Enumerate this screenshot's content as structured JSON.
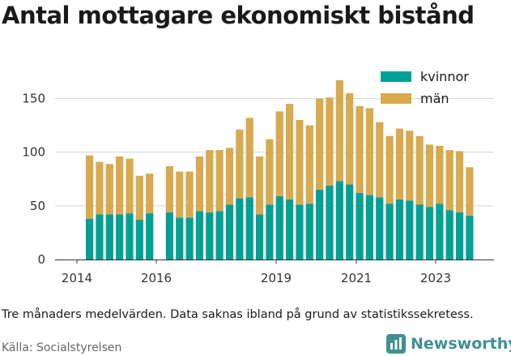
{
  "title": "Antal mottagare ekonomiskt bistånd",
  "note": "Tre månaders medelvärden. Data saknas ibland på grund av statistikssekretess.",
  "source": "Källa: Socialstyrelsen",
  "brand": {
    "name": "Newsworthy",
    "icon": "bar-chart-logo-icon",
    "color": "#3f8f93"
  },
  "chart_data": {
    "type": "bar",
    "stacked": true,
    "x_ticks": [
      "2014",
      "2016",
      "2019",
      "2021",
      "2023"
    ],
    "y_ticks": [
      0,
      50,
      100,
      150
    ],
    "ylim": [
      0,
      170
    ],
    "legend_position": "top-right",
    "categories": [
      "2014Q2",
      "2014Q3",
      "2014Q4",
      "2015Q1",
      "2015Q2",
      "2015Q3",
      "2015Q4",
      "2016Q1",
      "2016Q2",
      "2016Q3",
      "2016Q4",
      "2017Q1",
      "2017Q2",
      "2017Q3",
      "2017Q4",
      "2018Q1",
      "2018Q2",
      "2018Q3",
      "2018Q4",
      "2019Q1",
      "2019Q2",
      "2019Q3",
      "2019Q4",
      "2020Q1",
      "2020Q2",
      "2020Q3",
      "2020Q4",
      "2021Q1",
      "2021Q2",
      "2021Q3",
      "2021Q4",
      "2022Q1",
      "2022Q2",
      "2022Q3",
      "2022Q4",
      "2023Q1",
      "2023Q2",
      "2023Q3",
      "2023Q4"
    ],
    "series": [
      {
        "name": "kvinnor",
        "color": "#00a096",
        "values": [
          38,
          42,
          42,
          42,
          43,
          37,
          43,
          null,
          44,
          39,
          39,
          45,
          44,
          45,
          51,
          57,
          58,
          42,
          51,
          59,
          56,
          51,
          52,
          65,
          69,
          73,
          70,
          62,
          60,
          58,
          52,
          56,
          55,
          51,
          49,
          52,
          46,
          44,
          41
        ]
      },
      {
        "name": "män",
        "color": "#d9a94f",
        "values": [
          59,
          49,
          47,
          54,
          51,
          41,
          37,
          null,
          43,
          43,
          43,
          51,
          58,
          57,
          53,
          64,
          74,
          54,
          61,
          79,
          89,
          79,
          73,
          85,
          82,
          94,
          85,
          81,
          81,
          70,
          63,
          66,
          65,
          64,
          58,
          54,
          56,
          57,
          45
        ]
      }
    ]
  }
}
